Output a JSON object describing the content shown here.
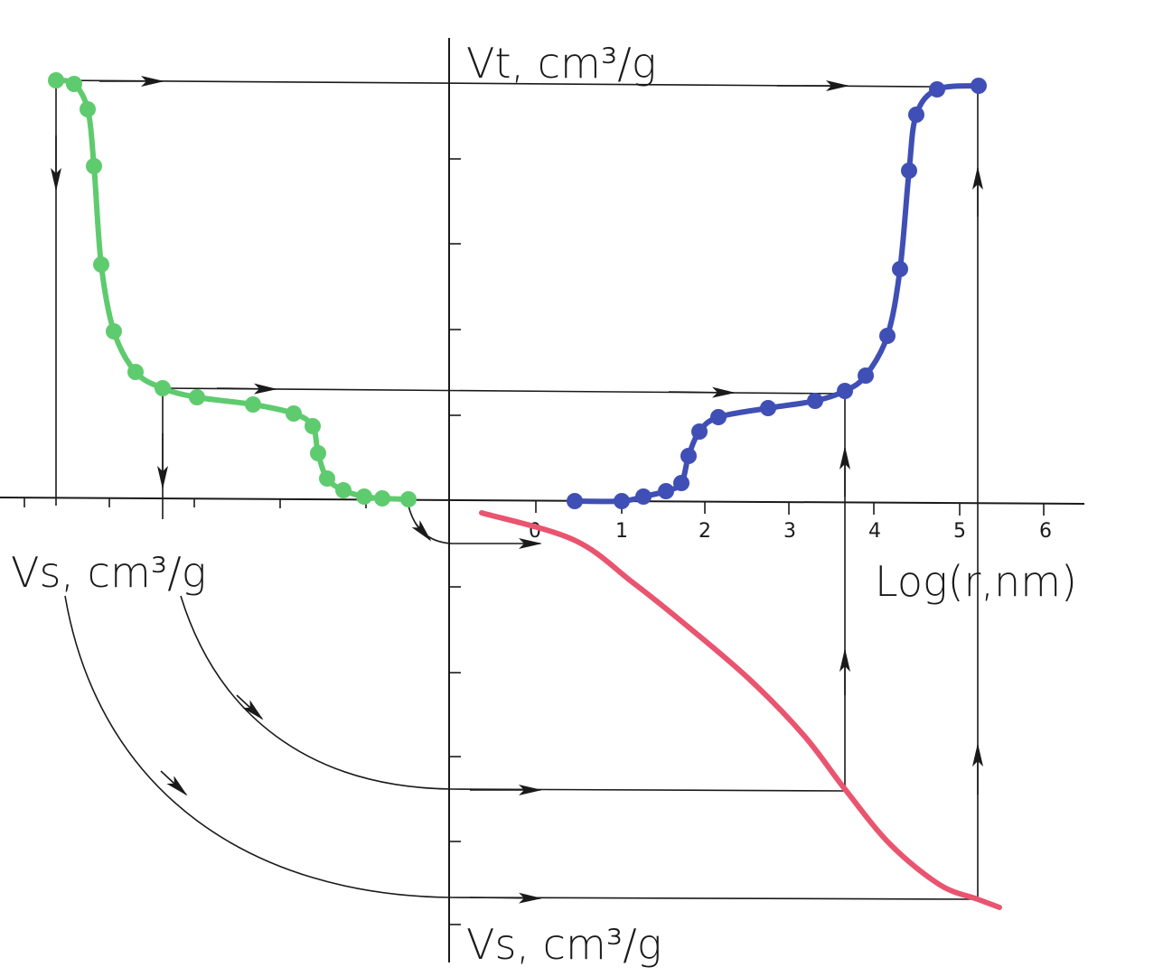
{
  "labels": {
    "vt_axis": "Vt, cm³/g",
    "vs_left_axis": "Vs, cm³/g",
    "vs_bottom_axis": "Vs, cm³/g",
    "x_axis": "Log(r,nm)"
  },
  "x_ticks": [
    "0",
    "1",
    "2",
    "3",
    "4",
    "5",
    "6"
  ],
  "colors": {
    "green_curve": "#5ecb6e",
    "blue_curve": "#3f4fb5",
    "red_curve": "#e9546f",
    "ink": "#1a1a1a"
  },
  "chart_data": {
    "type": "line",
    "series": [
      {
        "color": "green",
        "points": [
          [
            62,
            89
          ],
          [
            82,
            93
          ],
          [
            97,
            121
          ],
          [
            104,
            184
          ],
          [
            112,
            293
          ],
          [
            126,
            367
          ],
          [
            150,
            412
          ],
          [
            180,
            430
          ],
          [
            218,
            440
          ],
          [
            280,
            448
          ],
          [
            325,
            458
          ],
          [
            346,
            472
          ],
          [
            352,
            502
          ],
          [
            362,
            530
          ],
          [
            380,
            543
          ],
          [
            403,
            550
          ],
          [
            423,
            552
          ],
          [
            452,
            553
          ]
        ]
      },
      {
        "color": "blue",
        "points": [
          [
            636,
            555
          ],
          [
            688,
            555
          ],
          [
            712,
            550
          ],
          [
            737,
            544
          ],
          [
            754,
            535
          ],
          [
            762,
            505
          ],
          [
            774,
            478
          ],
          [
            795,
            462
          ],
          [
            850,
            452
          ],
          [
            902,
            444
          ],
          [
            935,
            433
          ],
          [
            958,
            416
          ],
          [
            982,
            372
          ],
          [
            996,
            298
          ],
          [
            1006,
            189
          ],
          [
            1014,
            127
          ],
          [
            1037,
            99
          ],
          [
            1083,
            95
          ]
        ]
      },
      {
        "color": "red",
        "points": [
          [
            533,
            568
          ],
          [
            635,
            598
          ],
          [
            700,
            645
          ],
          [
            760,
            693
          ],
          [
            830,
            753
          ],
          [
            890,
            815
          ],
          [
            935,
            874
          ],
          [
            985,
            935
          ],
          [
            1040,
            980
          ],
          [
            1082,
            996
          ],
          [
            1106,
            1005
          ]
        ]
      }
    ]
  }
}
